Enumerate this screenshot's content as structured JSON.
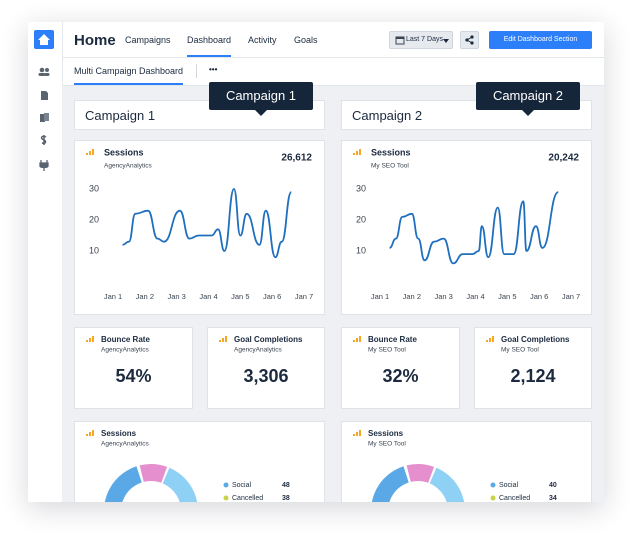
{
  "header": {
    "title": "Home",
    "nav": [
      "Campaigns",
      "Dashboard",
      "Activity",
      "Goals"
    ],
    "active_nav": 1,
    "date_range": "Last 7 Days",
    "primary_button": "Edit Dashboard Section"
  },
  "tabs": {
    "items": [
      "Multi Campaign Dashboard"
    ],
    "more": "•••"
  },
  "campaigns": [
    {
      "title": "Campaign 1",
      "tooltip": "Campaign 1",
      "sessions": {
        "title": "Sessions",
        "source": "AgencyAnalytics",
        "total": "26,612",
        "chart_data": {
          "type": "line",
          "color": "#1f6fbf",
          "x": [
            0.3,
            0.5,
            0.7,
            1.1,
            1.4,
            1.6,
            2.1,
            2.4,
            2.7,
            3.1,
            3.3,
            3.5,
            3.8,
            4.0,
            4.2,
            4.6,
            4.8,
            5.1,
            5.3,
            5.6
          ],
          "values": [
            12,
            13,
            22,
            23,
            14,
            13,
            23,
            14,
            15,
            15,
            17,
            10,
            30,
            15,
            22,
            12,
            23,
            8,
            13,
            29
          ],
          "xlim": [
            0,
            6
          ],
          "xticks": [
            {
              "value": 0,
              "label": "Jan 1"
            },
            {
              "value": 1,
              "label": "Jan 2"
            },
            {
              "value": 2,
              "label": "Jan 3"
            },
            {
              "value": 3,
              "label": "Jan 4"
            },
            {
              "value": 4,
              "label": "Jan 5"
            },
            {
              "value": 5,
              "label": "Jan 6"
            },
            {
              "value": 6,
              "label": "Jan 7"
            }
          ],
          "ylim": [
            3,
            33
          ],
          "yticks": [
            10,
            20,
            30
          ]
        }
      },
      "bounce": {
        "title": "Bounce Rate",
        "source": "AgencyAnalytics",
        "value": "54%"
      },
      "goals": {
        "title": "Goal Completions",
        "source": "AgencyAnalytics",
        "value": "3,306"
      },
      "donut": {
        "title": "Sessions",
        "source": "AgencyAnalytics",
        "legend": [
          {
            "label": "Social",
            "value": "48",
            "color": "#5aa9e6"
          },
          {
            "label": "Cancelled",
            "value": "38",
            "color": "#c9d34a"
          }
        ]
      }
    },
    {
      "title": "Campaign 2",
      "tooltip": "Campaign 2",
      "sessions": {
        "title": "Sessions",
        "source": "My SEO Tool",
        "total": "20,242",
        "chart_data": {
          "type": "line",
          "color": "#1f6fbf",
          "x": [
            0.3,
            0.5,
            0.7,
            1.0,
            1.2,
            1.4,
            1.7,
            2.0,
            2.3,
            2.6,
            2.9,
            3.1,
            3.2,
            3.4,
            3.7,
            3.9,
            4.2,
            4.5,
            4.6,
            4.9,
            5.1,
            5.6
          ],
          "values": [
            11,
            14,
            21,
            22,
            14,
            7,
            13,
            14,
            6,
            9,
            9,
            10,
            18,
            8,
            24,
            9,
            9,
            26,
            10,
            18,
            11,
            29
          ],
          "xlim": [
            0,
            6
          ],
          "xticks": [
            {
              "value": 0,
              "label": "Jan 1"
            },
            {
              "value": 1,
              "label": "Jan 2"
            },
            {
              "value": 2,
              "label": "Jan 3"
            },
            {
              "value": 3,
              "label": "Jan 4"
            },
            {
              "value": 4,
              "label": "Jan 5"
            },
            {
              "value": 5,
              "label": "Jan 6"
            },
            {
              "value": 6,
              "label": "Jan 7"
            }
          ],
          "ylim": [
            3,
            33
          ],
          "yticks": [
            10,
            20,
            30
          ]
        }
      },
      "bounce": {
        "title": "Bounce Rate",
        "source": "My SEO Tool",
        "value": "32%"
      },
      "goals": {
        "title": "Goal Completions",
        "source": "My SEO Tool",
        "value": "2,124"
      },
      "donut": {
        "title": "Sessions",
        "source": "My SEO Tool",
        "legend": [
          {
            "label": "Social",
            "value": "40",
            "color": "#5aa9e6"
          },
          {
            "label": "Cancelled",
            "value": "34",
            "color": "#c9d34a"
          }
        ]
      }
    }
  ]
}
